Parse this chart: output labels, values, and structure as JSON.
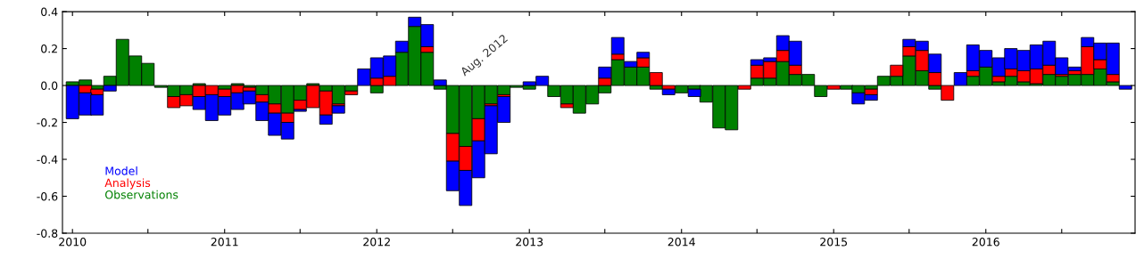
{
  "chart_data": {
    "type": "bar",
    "stacked": true,
    "x": [
      "2010-01",
      "2010-02",
      "2010-03",
      "2010-04",
      "2010-05",
      "2010-06",
      "2010-07",
      "2010-08",
      "2010-09",
      "2010-10",
      "2010-11",
      "2010-12",
      "2011-01",
      "2011-02",
      "2011-03",
      "2011-04",
      "2011-05",
      "2011-06",
      "2011-07",
      "2011-08",
      "2011-09",
      "2011-10",
      "2011-11",
      "2011-12",
      "2012-01",
      "2012-02",
      "2012-03",
      "2012-04",
      "2012-05",
      "2012-06",
      "2012-07",
      "2012-08",
      "2012-09",
      "2012-10",
      "2012-11",
      "2012-12",
      "2013-01",
      "2013-02",
      "2013-03",
      "2013-04",
      "2013-05",
      "2013-06",
      "2013-07",
      "2013-08",
      "2013-09",
      "2013-10",
      "2013-11",
      "2013-12",
      "2014-01",
      "2014-02",
      "2014-03",
      "2014-04",
      "2014-05",
      "2014-06",
      "2014-07",
      "2014-08",
      "2014-09",
      "2014-10",
      "2014-11",
      "2014-12",
      "2015-01",
      "2015-02",
      "2015-03",
      "2015-04",
      "2015-05",
      "2015-06",
      "2015-07",
      "2015-08",
      "2015-09",
      "2015-10",
      "2015-11",
      "2015-12",
      "2016-01",
      "2016-02",
      "2016-03",
      "2016-04",
      "2016-05",
      "2016-06",
      "2016-07",
      "2016-08",
      "2016-09",
      "2016-10",
      "2016-11",
      "2016-12"
    ],
    "series": [
      {
        "name": "Observations",
        "color": "#008000",
        "values": [
          0.02,
          0.03,
          -0.02,
          0.05,
          0.25,
          0.16,
          0.12,
          -0.01,
          -0.06,
          -0.05,
          0.01,
          null,
          -0.02,
          0.01,
          -0.01,
          -0.05,
          -0.1,
          -0.15,
          -0.08,
          0.01,
          -0.03,
          -0.1,
          -0.03,
          null,
          -0.04,
          null,
          0.18,
          0.32,
          0.18,
          -0.02,
          -0.26,
          -0.33,
          -0.18,
          -0.1,
          -0.05,
          -0.01,
          -0.02,
          null,
          -0.06,
          -0.1,
          -0.15,
          -0.1,
          -0.04,
          0.14,
          0.1,
          0.1,
          -0.02,
          null,
          -0.04,
          -0.02,
          -0.09,
          -0.23,
          -0.24,
          null,
          0.04,
          0.04,
          0.13,
          0.06,
          0.06,
          -0.06,
          null,
          -0.02,
          -0.04,
          -0.02,
          0.05,
          0.05,
          0.16,
          0.08,
          -0.02,
          null,
          null,
          0.05,
          0.1,
          0.02,
          0.05,
          0.02,
          0.01,
          0.06,
          0.05,
          0.06,
          0.06,
          0.09,
          0.02,
          null
        ]
      },
      {
        "name": "Analysis",
        "color": "#ff0000",
        "values": [
          null,
          -0.04,
          -0.03,
          null,
          null,
          null,
          null,
          null,
          -0.06,
          -0.06,
          -0.06,
          -0.05,
          -0.04,
          -0.04,
          -0.02,
          -0.04,
          -0.05,
          -0.05,
          -0.05,
          -0.12,
          -0.13,
          -0.01,
          -0.02,
          null,
          0.04,
          0.05,
          null,
          null,
          0.03,
          null,
          -0.15,
          -0.13,
          -0.12,
          -0.01,
          -0.01,
          null,
          null,
          null,
          null,
          -0.02,
          null,
          null,
          0.04,
          0.03,
          null,
          0.05,
          0.07,
          -0.02,
          null,
          null,
          null,
          null,
          null,
          -0.02,
          0.07,
          0.09,
          0.06,
          0.05,
          null,
          null,
          -0.02,
          null,
          null,
          -0.03,
          null,
          0.06,
          0.05,
          0.11,
          0.07,
          -0.08,
          null,
          0.03,
          null,
          0.03,
          0.04,
          0.06,
          0.08,
          0.05,
          0.01,
          0.02,
          0.15,
          0.05,
          0.04,
          null
        ]
      },
      {
        "name": "Model",
        "color": "#0000ff",
        "values": [
          -0.18,
          -0.12,
          -0.11,
          -0.03,
          null,
          null,
          null,
          null,
          null,
          null,
          -0.07,
          -0.14,
          -0.1,
          -0.09,
          -0.07,
          -0.1,
          -0.12,
          -0.09,
          -0.01,
          null,
          -0.05,
          -0.04,
          null,
          0.09,
          0.11,
          0.11,
          0.06,
          0.05,
          0.12,
          0.03,
          -0.16,
          -0.19,
          -0.2,
          -0.26,
          -0.14,
          null,
          0.02,
          0.05,
          null,
          null,
          null,
          null,
          0.06,
          0.09,
          0.03,
          0.03,
          null,
          -0.03,
          null,
          -0.04,
          null,
          null,
          null,
          null,
          0.03,
          0.02,
          0.08,
          0.13,
          null,
          null,
          null,
          null,
          -0.06,
          -0.03,
          null,
          null,
          0.04,
          0.05,
          0.1,
          null,
          0.07,
          0.14,
          0.09,
          0.1,
          0.11,
          0.11,
          0.13,
          0.13,
          0.09,
          0.02,
          0.05,
          0.09,
          0.17,
          -0.02
        ]
      }
    ],
    "xlim": [
      "2009-12-08",
      "2016-12-24"
    ],
    "xticks": [
      {
        "value": "2010-01",
        "label": "2010"
      },
      {
        "value": "2010-07",
        "label": null
      },
      {
        "value": "2011-01",
        "label": "2011"
      },
      {
        "value": "2011-07",
        "label": null
      },
      {
        "value": "2012-01",
        "label": "2012"
      },
      {
        "value": "2012-07",
        "label": null
      },
      {
        "value": "2013-01",
        "label": "2013"
      },
      {
        "value": "2013-07",
        "label": null
      },
      {
        "value": "2014-01",
        "label": "2014"
      },
      {
        "value": "2014-07",
        "label": null
      },
      {
        "value": "2015-01",
        "label": "2015"
      },
      {
        "value": "2015-07",
        "label": null
      },
      {
        "value": "2016-01",
        "label": "2016"
      },
      {
        "value": "2016-07",
        "label": null
      }
    ],
    "ylim": [
      -0.8,
      0.4
    ],
    "yticks": [
      {
        "value": -0.8,
        "label": "-0.8"
      },
      {
        "value": -0.6,
        "label": "-0.6"
      },
      {
        "value": -0.4,
        "label": "-0.4"
      },
      {
        "value": -0.2,
        "label": "-0.2"
      },
      {
        "value": 0.0,
        "label": "0.0"
      },
      {
        "value": 0.2,
        "label": "0.2"
      },
      {
        "value": 0.4,
        "label": "0.4"
      }
    ],
    "annotations": [
      "Aug. 2012"
    ],
    "legend": "bottom left"
  }
}
